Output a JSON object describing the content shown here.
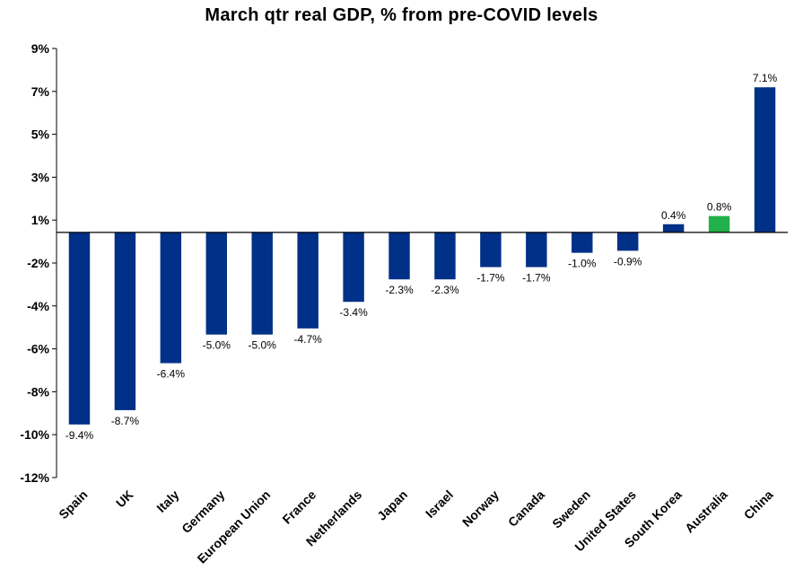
{
  "chart_data": {
    "type": "bar",
    "title": "March qtr real GDP, % from pre-COVID levels",
    "categories": [
      "Spain",
      "UK",
      "Italy",
      "Germany",
      "European Union",
      "France",
      "Netherlands",
      "Japan",
      "Israel",
      "Norway",
      "Canada",
      "Sweden",
      "United States",
      "South Korea",
      "Australia",
      "China"
    ],
    "values": [
      -9.4,
      -8.7,
      -6.4,
      -5.0,
      -5.0,
      -4.7,
      -3.4,
      -2.3,
      -2.3,
      -1.7,
      -1.7,
      -1.0,
      -0.9,
      0.4,
      0.8,
      7.1
    ],
    "data_labels": [
      "-9.4%",
      "-8.7%",
      "-6.4%",
      "-5.0%",
      "-5.0%",
      "-4.7%",
      "-3.4%",
      "-2.3%",
      "-2.3%",
      "-1.7%",
      "-1.7%",
      "-1.0%",
      "-0.9%",
      "0.4%",
      "0.8%",
      "7.1%"
    ],
    "ytick_labels": [
      "9%",
      "7%",
      "5%",
      "3%",
      "1%",
      "-2%",
      "-4%",
      "-6%",
      "-8%",
      "-10%",
      "-12%"
    ],
    "ylim": [
      -12,
      9
    ],
    "xlabel": "",
    "ylabel": "",
    "bar_color": "#003087",
    "highlight_color": "#22b04b",
    "highlight_category": "Australia",
    "grid": false,
    "legend": "none"
  }
}
